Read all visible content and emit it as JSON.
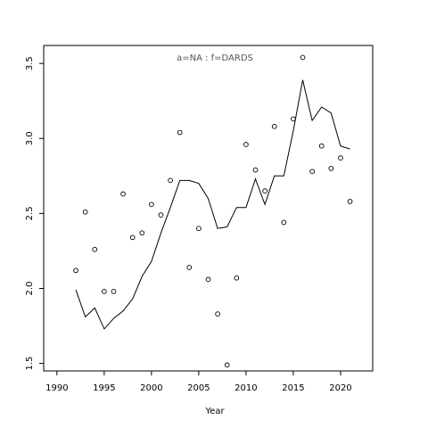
{
  "chart_data": {
    "type": "scatter",
    "title": "",
    "annotation": "a=NA  :  f=DARDS",
    "xlabel": "Year",
    "ylabel": "",
    "xlim": [
      1988.6,
      2023.4
    ],
    "ylim": [
      1.45,
      3.62
    ],
    "xticks": [
      1990,
      1995,
      2000,
      2005,
      2010,
      2015,
      2020
    ],
    "yticks": [
      1.5,
      2.0,
      2.5,
      3.0,
      3.5
    ],
    "grid": false,
    "legend": "none",
    "series": [
      {
        "kind": "points",
        "x": [
          1992,
          1993,
          1994,
          1995,
          1996,
          1997,
          1998,
          1999,
          2000,
          2001,
          2002,
          2003,
          2004,
          2005,
          2006,
          2007,
          2008,
          2009,
          2010,
          2011,
          2012,
          2013,
          2014,
          2015,
          2016,
          2017,
          2018,
          2019,
          2020,
          2021
        ],
        "values": [
          2.12,
          2.51,
          2.26,
          1.98,
          1.98,
          2.63,
          2.34,
          2.37,
          2.56,
          2.49,
          2.72,
          3.04,
          2.14,
          2.4,
          2.06,
          1.83,
          1.49,
          2.07,
          2.96,
          2.79,
          2.65,
          3.08,
          2.44,
          3.13,
          3.54,
          2.78,
          2.95,
          2.8,
          2.87,
          2.58
        ]
      },
      {
        "kind": "line",
        "x": [
          1992,
          1993,
          1994,
          1995,
          1996,
          1997,
          1998,
          1999,
          2000,
          2001,
          2002,
          2003,
          2004,
          2005,
          2006,
          2007,
          2008,
          2009,
          2010,
          2011,
          2012,
          2013,
          2014,
          2015,
          2016,
          2017,
          2018,
          2019,
          2020,
          2021
        ],
        "values": [
          1.99,
          1.81,
          1.87,
          1.73,
          1.8,
          1.85,
          1.93,
          2.08,
          2.18,
          2.37,
          2.54,
          2.72,
          2.72,
          2.7,
          2.6,
          2.4,
          2.41,
          2.54,
          2.54,
          2.73,
          2.56,
          2.75,
          2.75,
          3.05,
          3.39,
          3.12,
          3.21,
          3.17,
          2.95,
          2.93
        ]
      }
    ]
  }
}
